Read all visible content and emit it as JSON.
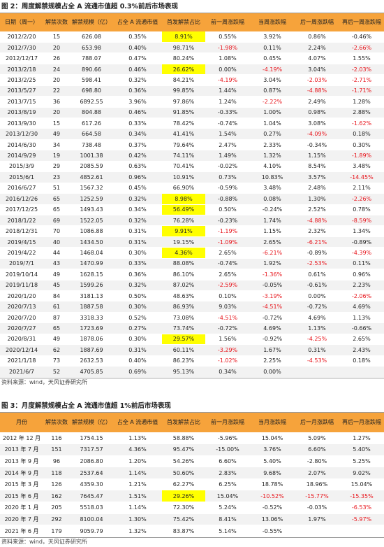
{
  "figures": [
    {
      "title": "图 2：周度解禁规模占全 A 流通市值超 0.3%前后市场表现",
      "header_color": "#f6a33b",
      "highlight_color": "#ffff00",
      "negative_color": "#e8141b",
      "table": {
        "header": [
          "日期（周一）",
          "解禁次数",
          "解禁规模（亿）",
          "占全 A 流通市值",
          "首发解禁占比",
          "前一周涨跌幅",
          "当周涨跌幅",
          "后一周涨跌幅",
          "再后一周涨跌幅"
        ],
        "rows": [
          [
            "2012/2/20",
            "15",
            "626.08",
            "0.35%",
            "8.91%",
            "0.55%",
            "3.92%",
            "0.86%",
            "-0.46%"
          ],
          [
            "2012/7/30",
            "20",
            "653.98",
            "0.40%",
            "98.71%",
            "-1.98%",
            "0.11%",
            "2.24%",
            "-2.66%"
          ],
          [
            "2012/12/17",
            "26",
            "788.07",
            "0.47%",
            "80.24%",
            "1.08%",
            "0.45%",
            "4.07%",
            "1.55%"
          ],
          [
            "2013/2/18",
            "24",
            "890.66",
            "0.46%",
            "26.62%",
            "0.00%",
            "-4.19%",
            "3.04%",
            "-2.03%"
          ],
          [
            "2013/2/25",
            "20",
            "598.41",
            "0.32%",
            "84.21%",
            "-4.19%",
            "3.04%",
            "-2.03%",
            "-2.71%"
          ],
          [
            "2013/5/27",
            "22",
            "698.80",
            "0.36%",
            "99.85%",
            "1.44%",
            "0.87%",
            "-4.88%",
            "-1.71%"
          ],
          [
            "2013/7/15",
            "36",
            "6892.55",
            "3.96%",
            "97.86%",
            "1.24%",
            "-2.22%",
            "2.49%",
            "1.28%"
          ],
          [
            "2013/8/19",
            "20",
            "804.88",
            "0.46%",
            "91.85%",
            "-0.33%",
            "1.00%",
            "0.98%",
            "2.88%"
          ],
          [
            "2013/9/30",
            "15",
            "617.26",
            "0.33%",
            "78.42%",
            "-0.74%",
            "1.04%",
            "3.08%",
            "-1.62%"
          ],
          [
            "2013/12/30",
            "49",
            "664.58",
            "0.34%",
            "41.41%",
            "1.54%",
            "0.27%",
            "-4.09%",
            "0.18%"
          ],
          [
            "2014/6/30",
            "34",
            "738.48",
            "0.37%",
            "79.64%",
            "2.47%",
            "2.33%",
            "-0.34%",
            "0.30%"
          ],
          [
            "2014/9/29",
            "19",
            "1001.38",
            "0.42%",
            "74.11%",
            "1.49%",
            "1.32%",
            "1.15%",
            "-1.89%"
          ],
          [
            "2015/3/9",
            "29",
            "2085.59",
            "0.63%",
            "70.41%",
            "-0.02%",
            "4.10%",
            "8.54%",
            "3.48%"
          ],
          [
            "2015/6/1",
            "23",
            "4852.61",
            "0.96%",
            "10.91%",
            "0.73%",
            "10.83%",
            "3.57%",
            "-14.45%"
          ],
          [
            "2016/6/27",
            "51",
            "1567.32",
            "0.45%",
            "66.90%",
            "-0.59%",
            "3.48%",
            "2.48%",
            "2.11%"
          ],
          [
            "2016/12/26",
            "65",
            "1252.59",
            "0.32%",
            "8.98%",
            "-0.88%",
            "0.08%",
            "1.30%",
            "-2.26%"
          ],
          [
            "2017/12/25",
            "65",
            "1493.43",
            "0.34%",
            "56.49%",
            "0.50%",
            "-0.24%",
            "2.52%",
            "0.78%"
          ],
          [
            "2018/1/22",
            "69",
            "1522.05",
            "0.32%",
            "76.28%",
            "-0.23%",
            "1.74%",
            "-4.88%",
            "-8.59%"
          ],
          [
            "2018/12/31",
            "70",
            "1086.88",
            "0.31%",
            "9.91%",
            "-1.19%",
            "1.15%",
            "2.32%",
            "1.34%"
          ],
          [
            "2019/4/15",
            "40",
            "1434.50",
            "0.31%",
            "19.15%",
            "-1.09%",
            "2.65%",
            "-6.21%",
            "-0.89%"
          ],
          [
            "2019/4/22",
            "44",
            "1468.04",
            "0.30%",
            "4.36%",
            "2.65%",
            "-6.21%",
            "-0.89%",
            "-4.39%"
          ],
          [
            "2019/7/1",
            "43",
            "1470.99",
            "0.33%",
            "88.08%",
            "-0.74%",
            "1.92%",
            "-2.53%",
            "0.11%"
          ],
          [
            "2019/10/14",
            "49",
            "1628.15",
            "0.36%",
            "86.10%",
            "2.65%",
            "-1.36%",
            "0.61%",
            "0.96%"
          ],
          [
            "2019/11/18",
            "45",
            "1599.26",
            "0.32%",
            "87.02%",
            "-2.59%",
            "-0.05%",
            "-0.61%",
            "2.23%"
          ],
          [
            "2020/1/20",
            "84",
            "3181.13",
            "0.50%",
            "48.63%",
            "0.10%",
            "-3.19%",
            "0.00%",
            "-2.06%"
          ],
          [
            "2020/7/13",
            "61",
            "1887.58",
            "0.30%",
            "86.93%",
            "9.03%",
            "-4.51%",
            "-0.72%",
            "4.69%"
          ],
          [
            "2020/7/20",
            "87",
            "3318.33",
            "0.52%",
            "73.08%",
            "-4.51%",
            "-0.72%",
            "4.69%",
            "1.13%"
          ],
          [
            "2020/7/27",
            "65",
            "1723.69",
            "0.27%",
            "73.74%",
            "-0.72%",
            "4.69%",
            "1.13%",
            "-0.66%"
          ],
          [
            "2020/8/31",
            "49",
            "1878.06",
            "0.30%",
            "29.57%",
            "1.56%",
            "-0.92%",
            "-4.25%",
            "2.65%"
          ],
          [
            "2020/12/14",
            "62",
            "1887.69",
            "0.31%",
            "60.11%",
            "-3.29%",
            "1.67%",
            "0.31%",
            "2.43%"
          ],
          [
            "2021/1/18",
            "73",
            "2632.53",
            "0.40%",
            "86.23%",
            "-1.02%",
            "2.25%",
            "-4.53%",
            "0.18%"
          ],
          [
            "2021/6/7",
            "52",
            "4705.85",
            "0.69%",
            "95.13%",
            "0.34%",
            "0.00%",
            null,
            null
          ]
        ]
      },
      "highlight_cells": [
        [
          0,
          4
        ],
        [
          3,
          4
        ],
        [
          15,
          4
        ],
        [
          16,
          4
        ],
        [
          18,
          4
        ],
        [
          20,
          4
        ],
        [
          28,
          4
        ]
      ],
      "negative_cells": [
        [
          1,
          5
        ],
        [
          1,
          8
        ],
        [
          3,
          6
        ],
        [
          3,
          8
        ],
        [
          4,
          5
        ],
        [
          4,
          7
        ],
        [
          4,
          8
        ],
        [
          5,
          7
        ],
        [
          5,
          8
        ],
        [
          6,
          6
        ],
        [
          8,
          8
        ],
        [
          9,
          7
        ],
        [
          11,
          8
        ],
        [
          13,
          8
        ],
        [
          15,
          8
        ],
        [
          17,
          7
        ],
        [
          17,
          8
        ],
        [
          18,
          5
        ],
        [
          19,
          5
        ],
        [
          19,
          7
        ],
        [
          20,
          6
        ],
        [
          20,
          8
        ],
        [
          21,
          7
        ],
        [
          22,
          6
        ],
        [
          23,
          5
        ],
        [
          24,
          6
        ],
        [
          24,
          8
        ],
        [
          25,
          6
        ],
        [
          26,
          5
        ],
        [
          28,
          7
        ],
        [
          29,
          5
        ],
        [
          30,
          5
        ],
        [
          30,
          7
        ]
      ],
      "source": "资料来源：wind，天风证券研究所"
    },
    {
      "title": "图 3：月度解禁规模占全 A 流通市值超 1%前后市场表现",
      "header_color": "#f6a33b",
      "highlight_color": "#ffff00",
      "negative_color": "#e8141b",
      "table": {
        "header": [
          "月份",
          "解禁次数",
          "解禁规模（亿）",
          "占全 A 流通市值",
          "首发解禁占比",
          "前一月涨跌幅",
          "当月涨跌幅",
          "后一月涨跌幅",
          "再后一月涨跌幅"
        ],
        "rows": [
          [
            "2012 年 12 月",
            "116",
            "1754.15",
            "1.13%",
            "58.88%",
            "-5.96%",
            "15.04%",
            "5.09%",
            "1.27%"
          ],
          [
            "2013 年 7 月",
            "151",
            "7317.57",
            "4.36%",
            "95.47%",
            "-15.00%",
            "3.76%",
            "6.60%",
            "5.40%"
          ],
          [
            "2013 年 9 月",
            "96",
            "2086.80",
            "1.20%",
            "54.26%",
            "6.60%",
            "5.40%",
            "-2.80%",
            "5.25%"
          ],
          [
            "2014 年 9 月",
            "118",
            "2537.64",
            "1.14%",
            "50.60%",
            "2.83%",
            "9.68%",
            "2.07%",
            "9.02%"
          ],
          [
            "2015 年 3 月",
            "126",
            "4359.30",
            "1.21%",
            "62.27%",
            "6.25%",
            "18.78%",
            "18.96%",
            "15.04%"
          ],
          [
            "2015 年 6 月",
            "162",
            "7645.47",
            "1.51%",
            "29.26%",
            "15.04%",
            "-10.52%",
            "-15.77%",
            "-15.35%"
          ],
          [
            "2020 年 1 月",
            "205",
            "5518.03",
            "1.14%",
            "72.30%",
            "5.24%",
            "-0.52%",
            "-0.03%",
            "-6.53%"
          ],
          [
            "2020 年 7 月",
            "292",
            "8100.04",
            "1.30%",
            "75.42%",
            "8.41%",
            "13.06%",
            "1.97%",
            "-5.97%"
          ],
          [
            "2021 年 6 月",
            "179",
            "9059.79",
            "1.32%",
            "83.87%",
            "5.14%",
            "-0.55%",
            null,
            null
          ]
        ]
      },
      "highlight_cells": [
        [
          5,
          4
        ]
      ],
      "negative_cells": [
        [
          5,
          6
        ],
        [
          5,
          7
        ],
        [
          5,
          8
        ],
        [
          6,
          8
        ],
        [
          7,
          8
        ]
      ],
      "source": "资料来源：wind，天风证券研究所"
    }
  ]
}
